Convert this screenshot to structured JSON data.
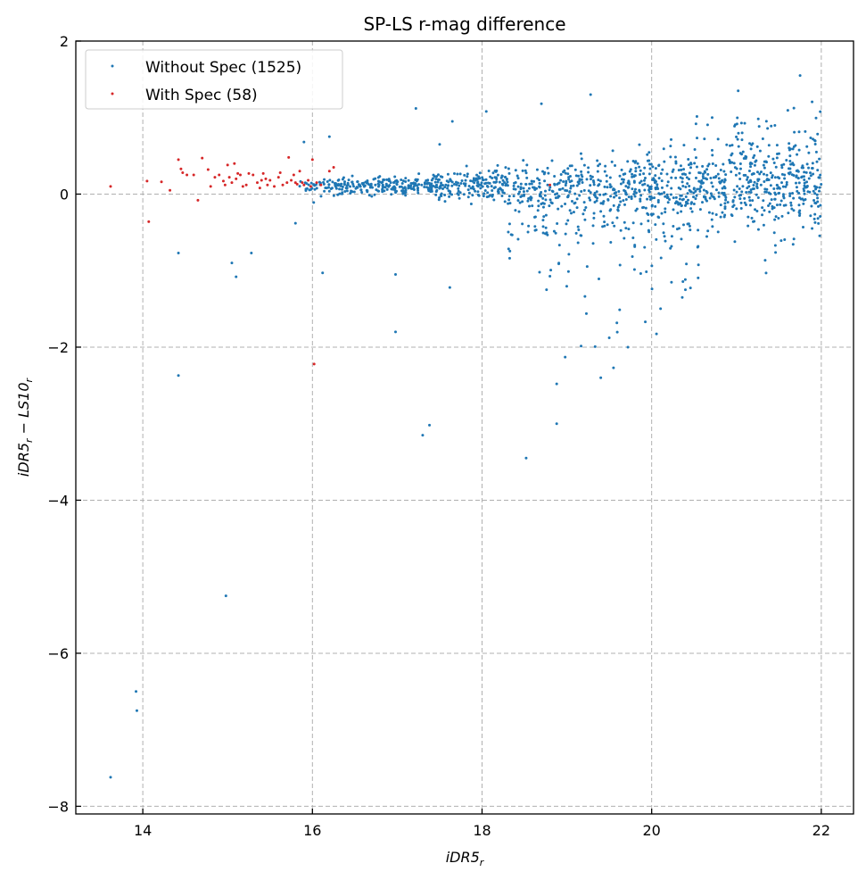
{
  "chart_data": {
    "type": "scatter",
    "title": "SP-LS r-mag difference",
    "xlabel": "iDR5",
    "xlabel_sub": "r",
    "ylabel": "iDR5",
    "ylabel_sub": "r",
    "ylabel_mid": " − LS10",
    "ylabel_sub2": "r",
    "xlim": [
      13.21,
      22.38
    ],
    "ylim": [
      -8.1,
      2.0
    ],
    "xticks": [
      14,
      16,
      18,
      20,
      22
    ],
    "yticks": [
      2,
      0,
      -2,
      -4,
      -6,
      -8
    ],
    "ytick_labels": [
      "2",
      "0",
      "−2",
      "−4",
      "−6",
      "−8"
    ],
    "grid": true,
    "legend_position": "top-left",
    "series": [
      {
        "name": "Without Spec (1525)",
        "color": "#1f77b4",
        "count": 1525,
        "outliers": [
          [
            13.62,
            -7.62
          ],
          [
            13.92,
            -6.5
          ],
          [
            13.93,
            -6.75
          ],
          [
            14.42,
            -2.37
          ],
          [
            14.42,
            -0.77
          ],
          [
            14.98,
            -5.25
          ],
          [
            15.05,
            -0.9
          ],
          [
            15.1,
            -1.08
          ],
          [
            15.28,
            -0.77
          ],
          [
            17.3,
            -3.15
          ],
          [
            17.38,
            -3.02
          ],
          [
            18.52,
            -3.45
          ],
          [
            18.88,
            -3.0
          ],
          [
            16.98,
            -1.8
          ],
          [
            17.22,
            1.12
          ],
          [
            18.05,
            1.08
          ],
          [
            18.7,
            1.18
          ],
          [
            19.28,
            1.3
          ],
          [
            21.75,
            1.55
          ],
          [
            21.02,
            1.35
          ],
          [
            17.62,
            -1.22
          ],
          [
            18.88,
            -2.48
          ],
          [
            18.98,
            -2.13
          ],
          [
            19.55,
            -2.27
          ],
          [
            19.4,
            -2.4
          ],
          [
            19.72,
            -2.0
          ],
          [
            16.12,
            -1.03
          ],
          [
            15.8,
            -0.38
          ],
          [
            16.98,
            -1.05
          ],
          [
            17.5,
            0.65
          ],
          [
            17.65,
            0.95
          ],
          [
            16.2,
            0.75
          ],
          [
            15.9,
            0.68
          ]
        ]
      },
      {
        "name": "With Spec (58)",
        "color": "#d62728",
        "count": 58,
        "points": [
          [
            13.62,
            0.1
          ],
          [
            14.05,
            0.17
          ],
          [
            14.07,
            -0.36
          ],
          [
            14.22,
            0.16
          ],
          [
            14.32,
            0.05
          ],
          [
            14.42,
            0.45
          ],
          [
            14.45,
            0.33
          ],
          [
            14.47,
            0.28
          ],
          [
            14.52,
            0.25
          ],
          [
            14.6,
            0.25
          ],
          [
            14.65,
            -0.08
          ],
          [
            14.7,
            0.47
          ],
          [
            14.77,
            0.32
          ],
          [
            14.8,
            0.1
          ],
          [
            14.85,
            0.22
          ],
          [
            14.9,
            0.25
          ],
          [
            14.95,
            0.17
          ],
          [
            14.97,
            0.12
          ],
          [
            15.0,
            0.38
          ],
          [
            15.02,
            0.22
          ],
          [
            15.05,
            0.15
          ],
          [
            15.08,
            0.4
          ],
          [
            15.1,
            0.2
          ],
          [
            15.12,
            0.27
          ],
          [
            15.15,
            0.25
          ],
          [
            15.18,
            0.1
          ],
          [
            15.22,
            0.12
          ],
          [
            15.25,
            0.27
          ],
          [
            15.3,
            0.25
          ],
          [
            15.35,
            0.15
          ],
          [
            15.38,
            0.08
          ],
          [
            15.42,
            0.27
          ],
          [
            15.45,
            0.2
          ],
          [
            15.47,
            0.12
          ],
          [
            15.5,
            0.18
          ],
          [
            15.55,
            0.1
          ],
          [
            15.6,
            0.22
          ],
          [
            15.65,
            0.12
          ],
          [
            15.7,
            0.15
          ],
          [
            15.72,
            0.48
          ],
          [
            15.75,
            0.18
          ],
          [
            15.78,
            0.25
          ],
          [
            15.8,
            0.15
          ],
          [
            15.82,
            0.13
          ],
          [
            15.85,
            0.3
          ],
          [
            15.88,
            0.15
          ],
          [
            15.9,
            0.12
          ],
          [
            15.95,
            0.18
          ],
          [
            15.98,
            0.1
          ],
          [
            16.0,
            0.45
          ],
          [
            16.02,
            -2.22
          ],
          [
            16.05,
            0.15
          ],
          [
            16.1,
            0.12
          ],
          [
            16.2,
            0.3
          ],
          [
            16.25,
            0.35
          ],
          [
            15.4,
            0.18
          ],
          [
            15.62,
            0.28
          ],
          [
            18.8,
            0.12
          ]
        ]
      }
    ]
  }
}
